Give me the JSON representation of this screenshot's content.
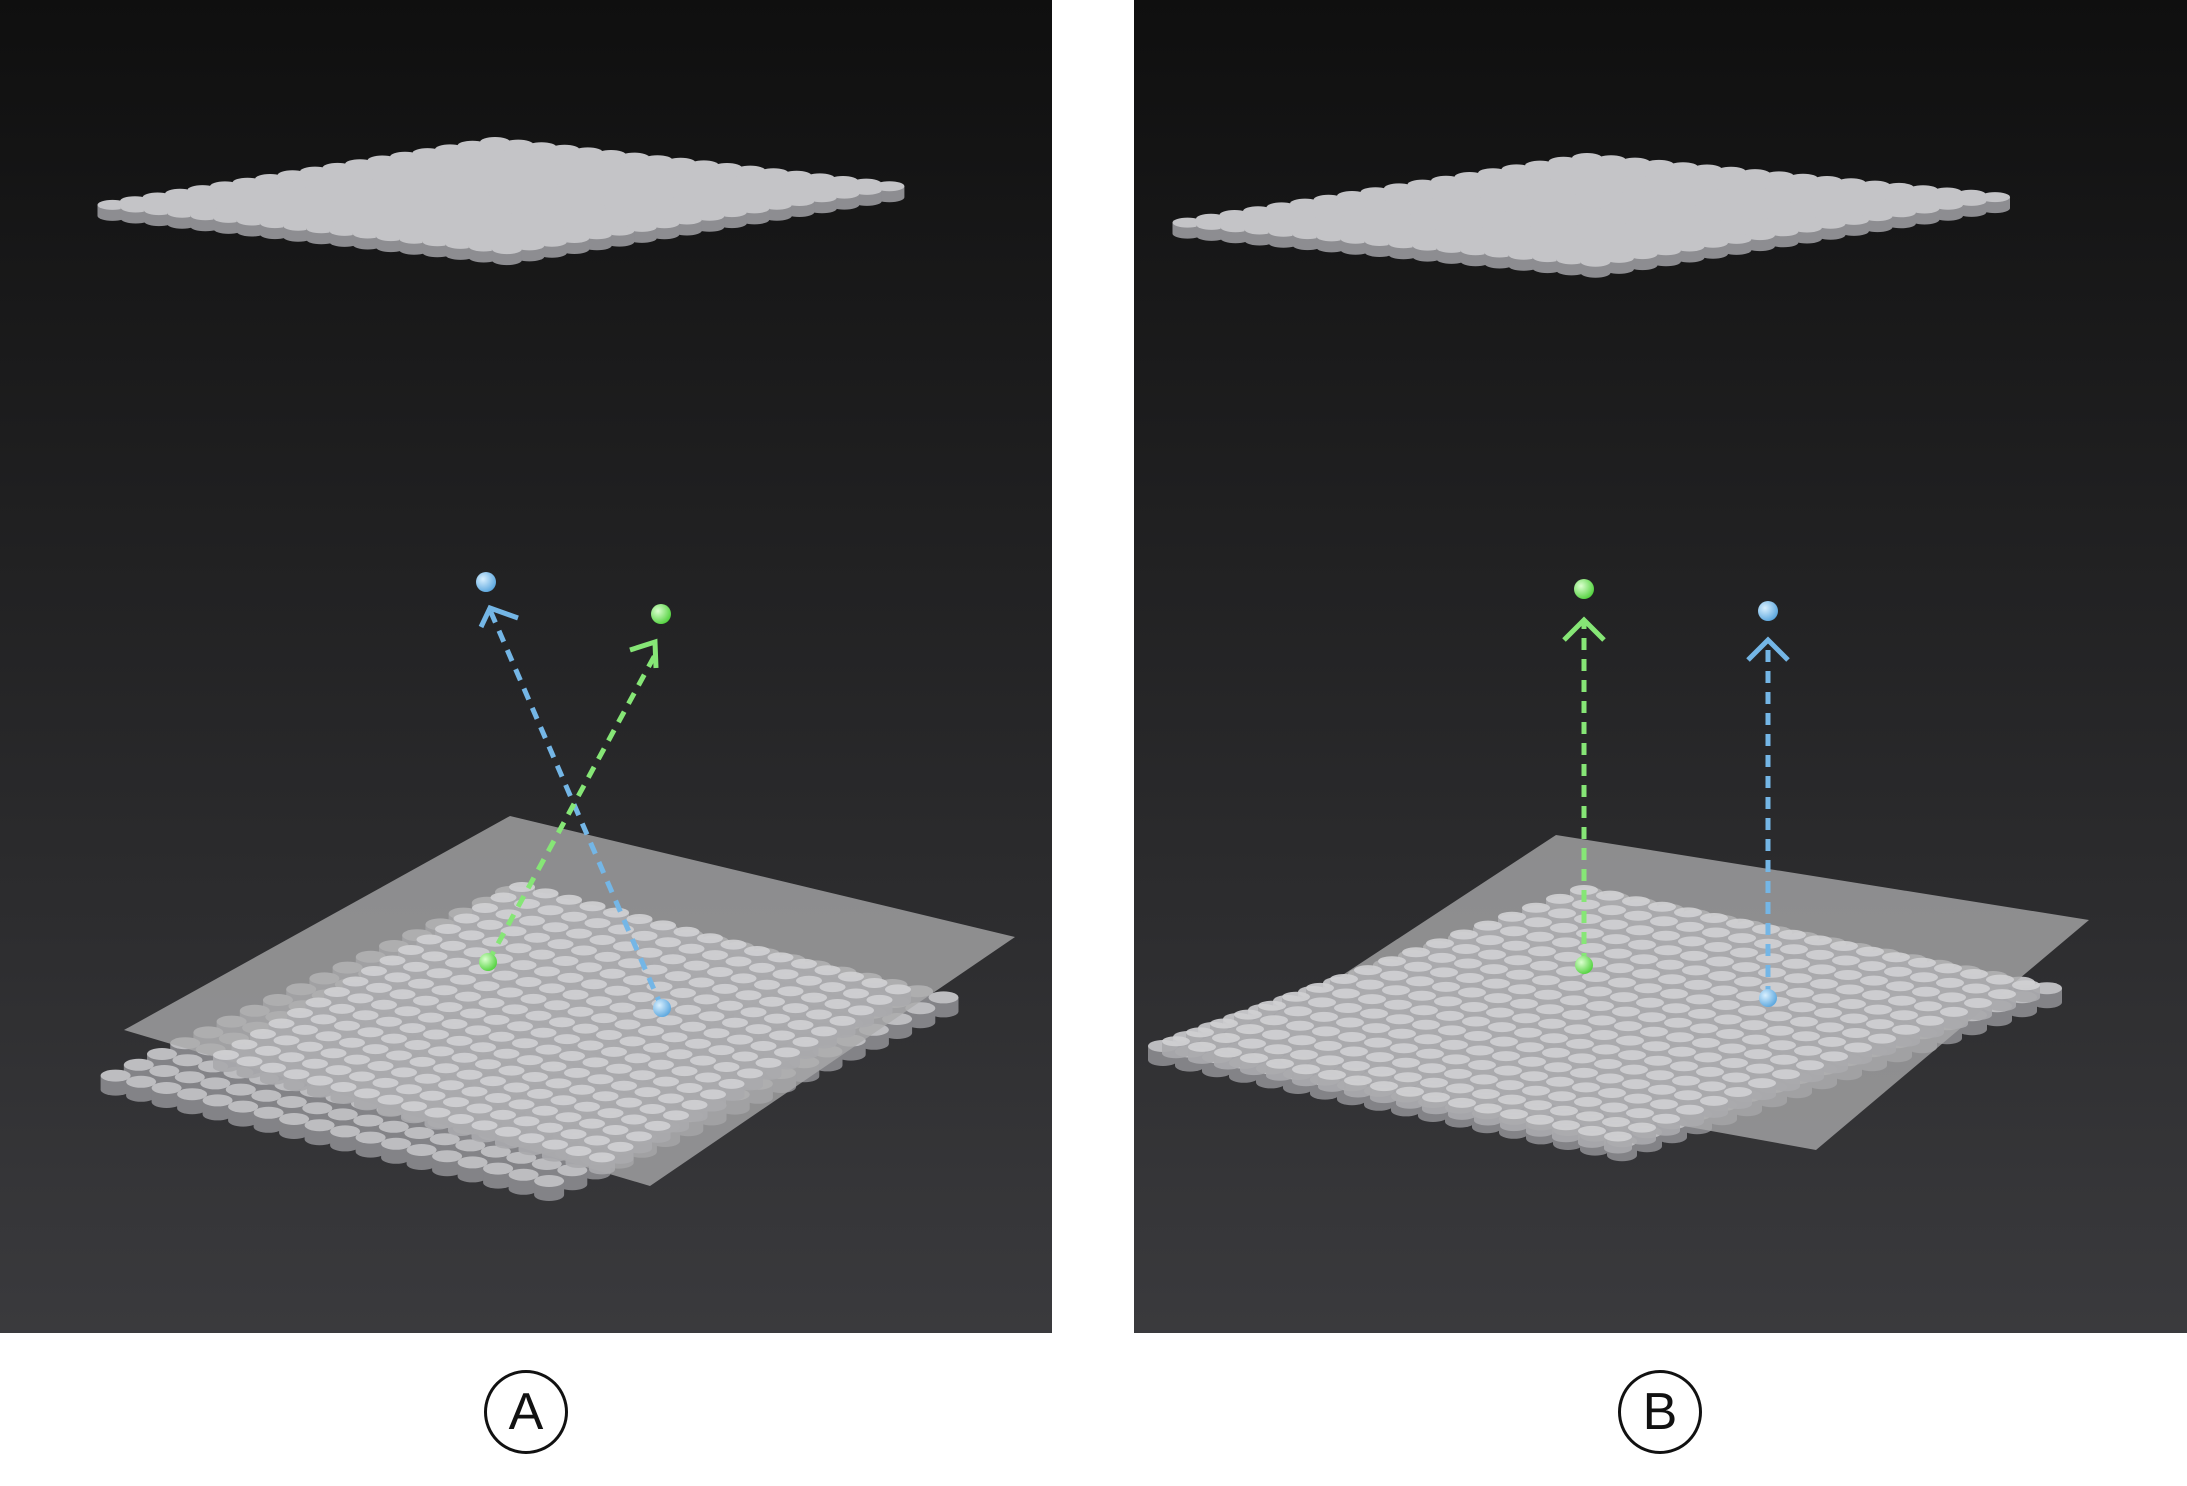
{
  "panels": [
    {
      "id": "A",
      "label": "A",
      "lattice": "tilted",
      "arrows": [
        "blue",
        "green"
      ]
    },
    {
      "id": "B",
      "label": "B",
      "lattice": "aligned",
      "arrows": [
        "green",
        "blue"
      ]
    }
  ],
  "colors": {
    "background_top": "#0f0f0f",
    "background_bottom": "#3a3a3d",
    "lattice": "#b9b9bc",
    "plate": "#9c9c9e",
    "blue": "#74b6e6",
    "green": "#86e676"
  }
}
